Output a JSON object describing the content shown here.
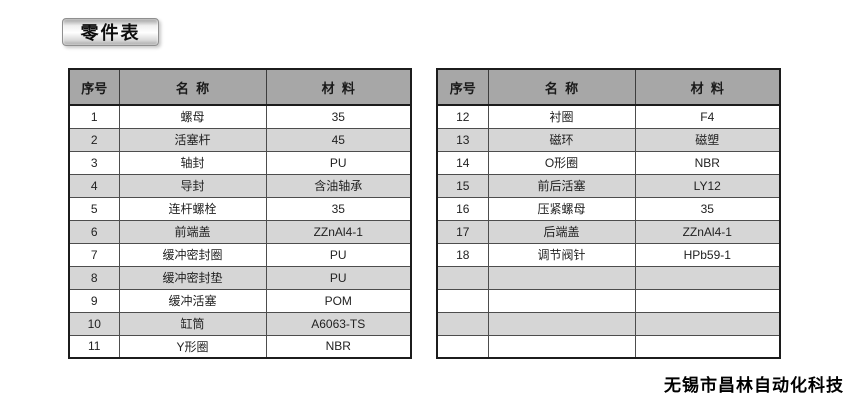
{
  "page": {
    "title": "零件表",
    "footer": "无锡市昌林自动化科技"
  },
  "columns": [
    "序号",
    "名  称",
    "材  料"
  ],
  "left_table": {
    "rows": [
      [
        "1",
        "螺母",
        "35"
      ],
      [
        "2",
        "活塞杆",
        "45"
      ],
      [
        "3",
        "轴封",
        "PU"
      ],
      [
        "4",
        "导封",
        "含油轴承"
      ],
      [
        "5",
        "连杆螺栓",
        "35"
      ],
      [
        "6",
        "前端盖",
        "ZZnAl4-1"
      ],
      [
        "7",
        "缓冲密封圈",
        "PU"
      ],
      [
        "8",
        "缓冲密封垫",
        "PU"
      ],
      [
        "9",
        "缓冲活塞",
        "POM"
      ],
      [
        "10",
        "缸筒",
        "A6063-TS"
      ],
      [
        "11",
        "Y形圈",
        "NBR"
      ]
    ]
  },
  "right_table": {
    "rows": [
      [
        "12",
        "衬圈",
        "F4"
      ],
      [
        "13",
        "磁环",
        "磁塑"
      ],
      [
        "14",
        "O形圈",
        "NBR"
      ],
      [
        "15",
        "前后活塞",
        "LY12"
      ],
      [
        "16",
        "压紧螺母",
        "35"
      ],
      [
        "17",
        "后端盖",
        "ZZnAl4-1"
      ],
      [
        "18",
        "调节阀针",
        "HPb59-1"
      ],
      [
        "",
        "",
        ""
      ],
      [
        "",
        "",
        ""
      ],
      [
        "",
        "",
        ""
      ],
      [
        "",
        "",
        ""
      ]
    ]
  }
}
